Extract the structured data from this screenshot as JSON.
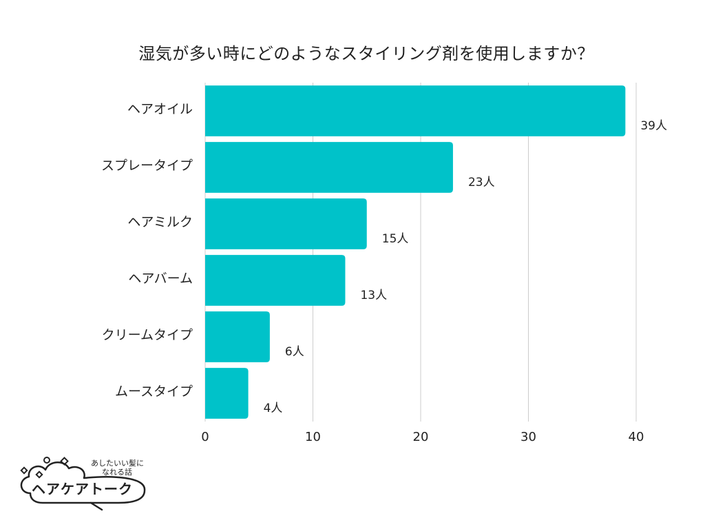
{
  "chart_data": {
    "type": "bar",
    "orientation": "horizontal",
    "title": "湿気が多い時にどのようなスタイリング剤を使用しますか？",
    "categories": [
      "ヘアオイル",
      "スプレータイプ",
      "ヘアミルク",
      "ヘアバーム",
      "クリームタイプ",
      "ムースタイプ"
    ],
    "values": [
      39,
      23,
      15,
      13,
      6,
      4
    ],
    "value_labels": [
      "39人",
      "23人",
      "15人",
      "13人",
      "6人",
      "4人"
    ],
    "xlim": [
      0,
      40
    ],
    "xticks": [
      0,
      10,
      20,
      30,
      40
    ],
    "xtick_labels": [
      "0",
      "10",
      "20",
      "30",
      "40"
    ],
    "xlabel": "",
    "ylabel": "",
    "grid": true,
    "bar_color": "#00C2C9"
  },
  "logo": {
    "tagline_line1": "あしたいい髪に",
    "tagline_line2": "なれる話",
    "name": "ヘアケアトーク"
  }
}
